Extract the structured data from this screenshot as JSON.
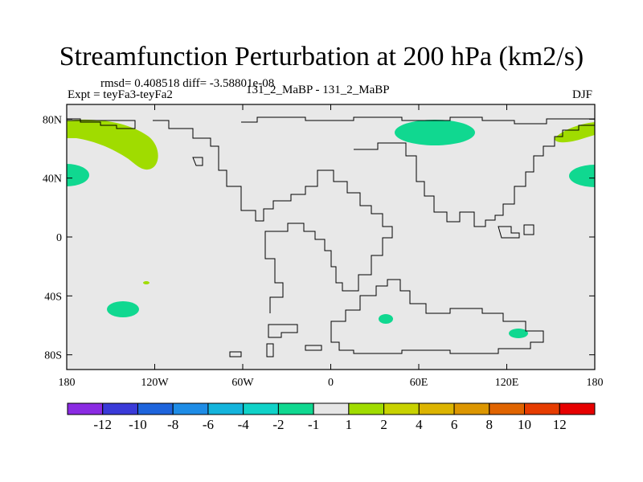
{
  "title": "Streamfunction Perturbation at 200 hPa (km2/s)",
  "stats_line": "rmsd= 0.408518 diff= -3.58801e-08",
  "expt_line": "Expt = teyFa3-teyFa2",
  "run_line": "131_2_MaBP - 131_2_MaBP",
  "season": "DJF",
  "map": {
    "projection": "cylindrical equidistant",
    "lon_range": [
      -180,
      180
    ],
    "lat_range": [
      -90,
      90
    ],
    "background_color": "#e8e8e8",
    "coastline_color": "#000000",
    "lat_ticks": [
      {
        "value": 80,
        "label": "80N"
      },
      {
        "value": 40,
        "label": "40N"
      },
      {
        "value": 0,
        "label": "0"
      },
      {
        "value": -40,
        "label": "40S"
      },
      {
        "value": -80,
        "label": "80S"
      }
    ],
    "lon_ticks": [
      {
        "value": -180,
        "label": "180"
      },
      {
        "value": -120,
        "label": "120W"
      },
      {
        "value": -60,
        "label": "60W"
      },
      {
        "value": 0,
        "label": "0"
      },
      {
        "value": 60,
        "label": "60E"
      },
      {
        "value": 120,
        "label": "120E"
      },
      {
        "value": 180,
        "label": "180"
      }
    ]
  },
  "colorbar": {
    "colors": [
      "#8a2be2",
      "#3a3ad8",
      "#1e64dc",
      "#1e8ce6",
      "#14b4dc",
      "#10d2c8",
      "#10d890",
      "#e6e6e6",
      "#a0dc00",
      "#c8d200",
      "#dcb400",
      "#dc9600",
      "#e06400",
      "#e63c00",
      "#e60000"
    ],
    "labels": [
      "-12",
      "-10",
      "-8",
      "-6",
      "-4",
      "-2",
      "-1",
      "1",
      "2",
      "4",
      "6",
      "8",
      "10",
      "12"
    ]
  },
  "chart_data": {
    "type": "heatmap",
    "variable": "Streamfunction Perturbation",
    "level": "200 hPa",
    "units": "km2/s",
    "season": "DJF",
    "contour_levels": [
      -12,
      -10,
      -8,
      -6,
      -4,
      -2,
      -1,
      1,
      2,
      4,
      6,
      8,
      10,
      12
    ],
    "features": [
      {
        "lon": -155,
        "lat": 65,
        "range": [
          1,
          2
        ],
        "color": "#a0dc00"
      },
      {
        "lon": 165,
        "lat": 70,
        "range": [
          1,
          2
        ],
        "color": "#a0dc00"
      },
      {
        "lon": -176,
        "lat": 42,
        "range": [
          -2,
          -1
        ],
        "color": "#10d890"
      },
      {
        "lon": 174,
        "lat": 42,
        "range": [
          -2,
          -1
        ],
        "color": "#10d890"
      },
      {
        "lon": 70,
        "lat": 70,
        "range": [
          -2,
          -1
        ],
        "color": "#10d890"
      },
      {
        "lon": -140,
        "lat": -49,
        "range": [
          -2,
          -1
        ],
        "color": "#10d890"
      },
      {
        "lon": 37,
        "lat": -56,
        "range": [
          -2,
          -1
        ],
        "color": "#10d890"
      },
      {
        "lon": 128,
        "lat": -66,
        "range": [
          -2,
          -1
        ],
        "color": "#10d890"
      },
      {
        "lon": -130,
        "lat": -32,
        "range": [
          1,
          2
        ],
        "color": "#a0dc00"
      }
    ]
  }
}
